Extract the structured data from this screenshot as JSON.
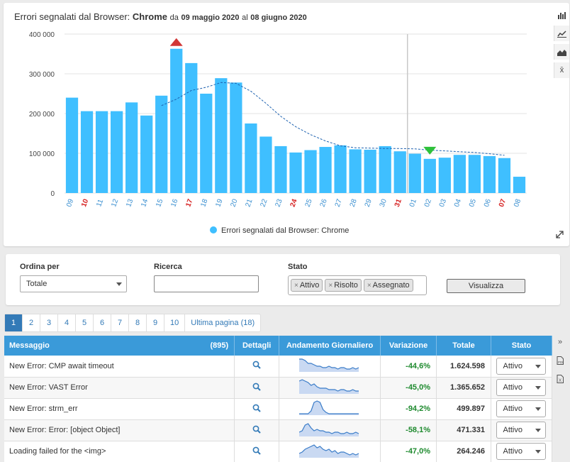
{
  "chart": {
    "title_prefix": "Errori segnalati dal Browser:",
    "title_browser": "Chrome",
    "title_da": "da",
    "title_from": "09 maggio 2020",
    "title_al": "al",
    "title_to": "08 giugno 2020",
    "legend": "Errori segnalati dal Browser: Chrome",
    "tools": [
      "bar-chart-icon",
      "line-chart-icon",
      "area-chart-icon",
      "mean-icon"
    ],
    "mean_symbol": "x̄"
  },
  "chart_data": {
    "type": "bar",
    "categories": [
      "09",
      "10",
      "11",
      "12",
      "13",
      "14",
      "15",
      "16",
      "17",
      "18",
      "19",
      "20",
      "21",
      "22",
      "23",
      "24",
      "25",
      "26",
      "27",
      "28",
      "29",
      "30",
      "31",
      "01",
      "02",
      "03",
      "04",
      "05",
      "06",
      "07",
      "08"
    ],
    "holidays": [
      "10",
      "17",
      "24",
      "31",
      "07"
    ],
    "values": [
      240000,
      206000,
      206000,
      206000,
      228000,
      195000,
      245000,
      363000,
      327000,
      250000,
      289000,
      278000,
      175000,
      142000,
      118000,
      102000,
      108000,
      116000,
      120000,
      110000,
      109000,
      118000,
      105000,
      99000,
      86000,
      89000,
      96000,
      96000,
      93000,
      88000,
      41000
    ],
    "trend": [
      null,
      null,
      null,
      null,
      null,
      null,
      220000,
      236000,
      258000,
      266000,
      278000,
      276000,
      256000,
      226000,
      193000,
      167000,
      147000,
      131000,
      119000,
      114000,
      113000,
      112000,
      112000,
      111000,
      108000,
      106000,
      104000,
      102000,
      99000,
      95000,
      null
    ],
    "yticks": [
      "0",
      "100 000",
      "200 000",
      "300 000",
      "400 000"
    ],
    "ylim": [
      0,
      400000
    ],
    "max_marker": "16",
    "min_marker": "02",
    "vertical_line_after": "31",
    "bar_color": "#3fbfff",
    "max_marker_color": "#d13636",
    "min_marker_color": "#2ec13a",
    "holiday_label_color": "#d62222",
    "label_color": "#3a8fd0"
  },
  "filters": {
    "order_label": "Ordina per",
    "order_value": "Totale",
    "search_label": "Ricerca",
    "search_value": "",
    "state_label": "Stato",
    "tags": [
      "Attivo",
      "Risolto",
      "Assegnato"
    ],
    "tag_remove": "×",
    "button": "Visualizza"
  },
  "pager": {
    "pages": [
      "1",
      "2",
      "3",
      "4",
      "5",
      "6",
      "7",
      "8",
      "9",
      "10"
    ],
    "active": "1",
    "last": "Ultima pagina (18)"
  },
  "table": {
    "headers": {
      "message": "Messaggio",
      "count": "(895)",
      "details": "Dettagli",
      "trend": "Andamento Giornaliero",
      "variation": "Variazione",
      "total": "Totale",
      "state": "Stato"
    },
    "rows": [
      {
        "message": "New Error: CMP await timeout",
        "variation": "-44,6%",
        "total": "1.624.598",
        "state": "Attivo",
        "spark": [
          9,
          9,
          8,
          6,
          6,
          5,
          4,
          4,
          3,
          3,
          4,
          3,
          3,
          2,
          3,
          3,
          2,
          2,
          3,
          2,
          3
        ]
      },
      {
        "message": "New Error: VAST Error",
        "variation": "-45,0%",
        "total": "1.365.652",
        "state": "Attivo",
        "spark": [
          9,
          10,
          9,
          8,
          6,
          7,
          5,
          4,
          4,
          4,
          3,
          3,
          3,
          2,
          3,
          3,
          2,
          2,
          3,
          2,
          2
        ]
      },
      {
        "message": "New Error: strm_err",
        "variation": "-94,2%",
        "total": "499.897",
        "state": "Attivo",
        "spark": [
          1,
          1,
          1,
          1,
          3,
          9,
          10,
          9,
          4,
          2,
          1,
          1,
          1,
          1,
          1,
          1,
          1,
          1,
          1,
          1,
          1
        ]
      },
      {
        "message": "New Error: Error: [object Object]",
        "variation": "-58,1%",
        "total": "471.331",
        "state": "Attivo",
        "spark": [
          3,
          4,
          8,
          9,
          6,
          4,
          5,
          4,
          4,
          3,
          3,
          2,
          3,
          3,
          2,
          2,
          3,
          2,
          2,
          3,
          2
        ]
      },
      {
        "message": "Loading failed for the <img>",
        "variation": "-47,0%",
        "total": "264.246",
        "state": "Attivo",
        "spark": [
          3,
          4,
          6,
          7,
          8,
          9,
          7,
          8,
          6,
          5,
          6,
          4,
          5,
          3,
          4,
          4,
          3,
          2,
          3,
          2,
          3
        ]
      }
    ]
  },
  "table_tools": [
    "expand-icon",
    "pdf-icon",
    "excel-icon"
  ],
  "icon_glyphs": {
    "bar": "▮",
    "line": "↗",
    "area": "◭",
    "expand": "⤢",
    "search": "⚲",
    "next": "»",
    "pdf": "🗎",
    "excel": "▦"
  }
}
